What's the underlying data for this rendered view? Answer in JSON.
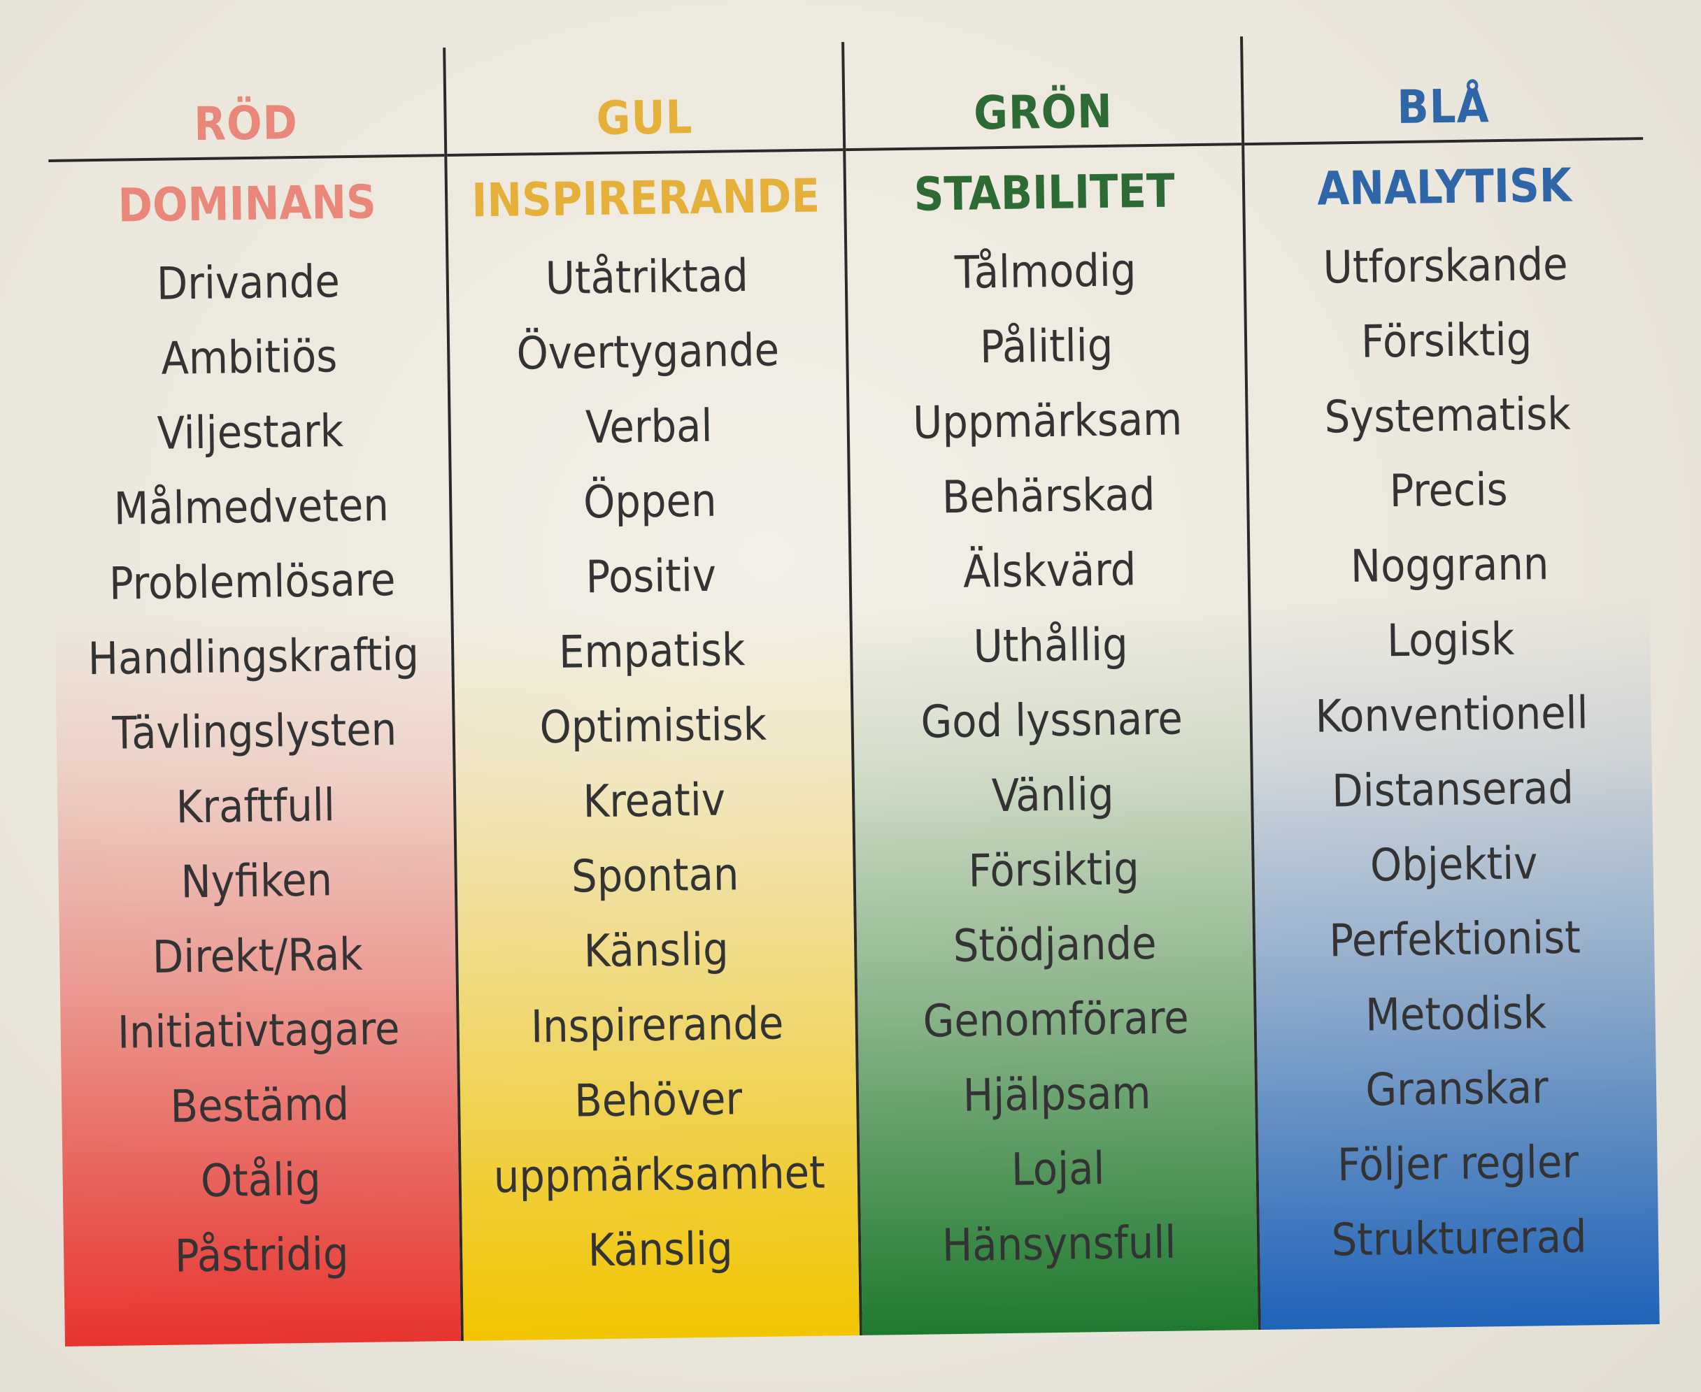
{
  "colors": {
    "red": "#e8342f",
    "yellow": "#f2c500",
    "green": "#1e7a2e",
    "blue": "#1f63b8",
    "red_text": "#e8877a",
    "yellow_text": "#e5b03a",
    "green_text": "#2e6b34",
    "blue_text": "#2f66a8"
  },
  "columns": [
    {
      "title": "RÖD",
      "subtitle": "DOMINANS",
      "traits": [
        "Drivande",
        "Ambitiös",
        "Viljestark",
        "Målmedveten",
        "Problemlösare",
        "Handlingskraftig",
        "Tävlingslysten",
        "Kraftfull",
        "Nyfiken",
        "Direkt/Rak",
        "Initiativtagare",
        "Bestämd",
        "Otålig",
        "Påstridig"
      ]
    },
    {
      "title": "GUL",
      "subtitle": "INSPIRERANDE",
      "traits": [
        "Utåtriktad",
        "Övertygande",
        "Verbal",
        "Öppen",
        "Positiv",
        "Empatisk",
        "Optimistisk",
        "Kreativ",
        "Spontan",
        "Känslig",
        "Inspirerande",
        "Behöver",
        "uppmärksamhet",
        "Känslig"
      ]
    },
    {
      "title": "GRÖN",
      "subtitle": "STABILITET",
      "traits": [
        "Tålmodig",
        "Pålitlig",
        "Uppmärksam",
        "Behärskad",
        "Älskvärd",
        "Uthållig",
        "God lyssnare",
        "Vänlig",
        "Försiktig",
        "Stödjande",
        "Genomförare",
        "Hjälpsam",
        "Lojal",
        "Hänsynsfull"
      ]
    },
    {
      "title": "BLÅ",
      "subtitle": "ANALYTISK",
      "traits": [
        "Utforskande",
        "Försiktig",
        "Systematisk",
        "Precis",
        "Noggrann",
        "Logisk",
        "Konventionell",
        "Distanserad",
        "Objektiv",
        "Perfektionist",
        "Metodisk",
        "Granskar",
        "Följer regler",
        "Strukturerad"
      ]
    }
  ]
}
